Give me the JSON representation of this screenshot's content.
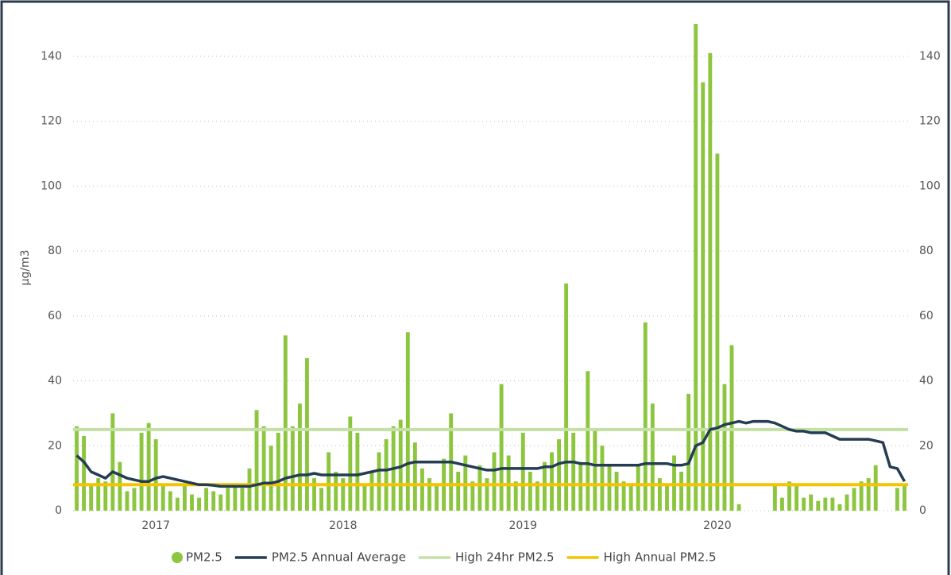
{
  "chart_data": {
    "type": "bar",
    "ylabel": "µg/m3",
    "categories": [
      null,
      null,
      null,
      null,
      null,
      null,
      null,
      null,
      null,
      null,
      null,
      "2017",
      null,
      null,
      null,
      null,
      null,
      null,
      null,
      null,
      null,
      null,
      null,
      null,
      null,
      null,
      null,
      null,
      null,
      null,
      null,
      null,
      null,
      null,
      null,
      null,
      null,
      "2018",
      null,
      null,
      null,
      null,
      null,
      null,
      null,
      null,
      null,
      null,
      null,
      null,
      null,
      null,
      null,
      null,
      null,
      null,
      null,
      null,
      null,
      null,
      null,
      null,
      "2019",
      null,
      null,
      null,
      null,
      null,
      null,
      null,
      null,
      null,
      null,
      null,
      null,
      null,
      null,
      null,
      null,
      null,
      null,
      null,
      null,
      null,
      null,
      null,
      null,
      null,
      null,
      "2020",
      null,
      null,
      null,
      null,
      null,
      null,
      null,
      null,
      null,
      null,
      null,
      null,
      null,
      null,
      null,
      null,
      null,
      null,
      null,
      null,
      null,
      null,
      null,
      null,
      null,
      null
    ],
    "series": [
      {
        "name": "PM2.5",
        "type": "bar",
        "color": "#8cc63e",
        "values": [
          26,
          23,
          8,
          10,
          9,
          30,
          15,
          6,
          7,
          24,
          27,
          22,
          8,
          6,
          4,
          8,
          5,
          4,
          7,
          6,
          5,
          7,
          8,
          7,
          13,
          31,
          26,
          20,
          24,
          54,
          26,
          33,
          47,
          10,
          7,
          18,
          12,
          10,
          29,
          24,
          8,
          12,
          18,
          22,
          26,
          28,
          55,
          21,
          13,
          10,
          8,
          16,
          30,
          12,
          17,
          9,
          14,
          10,
          18,
          39,
          17,
          9,
          24,
          12,
          9,
          15,
          18,
          22,
          70,
          24,
          15,
          43,
          25,
          20,
          14,
          12,
          9,
          8,
          14,
          58,
          33,
          10,
          8,
          17,
          12,
          36,
          150,
          132,
          141,
          110,
          39,
          51,
          2,
          null,
          null,
          null,
          null,
          8,
          4,
          9,
          8,
          4,
          5,
          3,
          4,
          4,
          2,
          5,
          7,
          9,
          10,
          14,
          null,
          null,
          7,
          8
        ]
      },
      {
        "name": "PM2.5 Annual Average",
        "type": "line",
        "color": "#243d52",
        "values": [
          17,
          15,
          12,
          11,
          10,
          12,
          11,
          10,
          9.5,
          9,
          9,
          10,
          10.5,
          10,
          9.5,
          9,
          8.5,
          8,
          8,
          7.8,
          7.5,
          7.5,
          7.5,
          7.5,
          7.5,
          8,
          8.5,
          8.5,
          9,
          10,
          10.5,
          11,
          11,
          11.5,
          11,
          11,
          11,
          11,
          11,
          11,
          11.5,
          12,
          12.5,
          12.5,
          13,
          13.5,
          14.5,
          15,
          15,
          15,
          15,
          15,
          15,
          14.5,
          14,
          13.5,
          13,
          12.5,
          12.5,
          13,
          13,
          13,
          13,
          13,
          13,
          13.5,
          13.5,
          14.5,
          15,
          15,
          14.5,
          14.5,
          14,
          14,
          14,
          14,
          14,
          14,
          14,
          14.5,
          14.5,
          14.5,
          14.5,
          14,
          14,
          14.5,
          20,
          21,
          25,
          25.5,
          26.5,
          27,
          27.5,
          27,
          27.5,
          27.5,
          27.5,
          27,
          26,
          25,
          24.5,
          24.5,
          24,
          24,
          24,
          23,
          22,
          22,
          22,
          22,
          22,
          21.5,
          21,
          13.5,
          13,
          9
        ]
      }
    ],
    "hlines": [
      {
        "name": "High 24hr PM2.5",
        "color": "#c4e0a4",
        "value": 25
      },
      {
        "name": "High Annual PM2.5",
        "color": "#f5c400",
        "value": 8
      }
    ],
    "ylim": [
      0,
      150
    ],
    "yticks": [
      0,
      20,
      40,
      60,
      80,
      100,
      120,
      140
    ],
    "y2lim": [
      0,
      150
    ],
    "y2ticks": [
      0,
      20,
      40,
      60,
      80,
      100,
      120,
      140
    ],
    "grid": true
  }
}
